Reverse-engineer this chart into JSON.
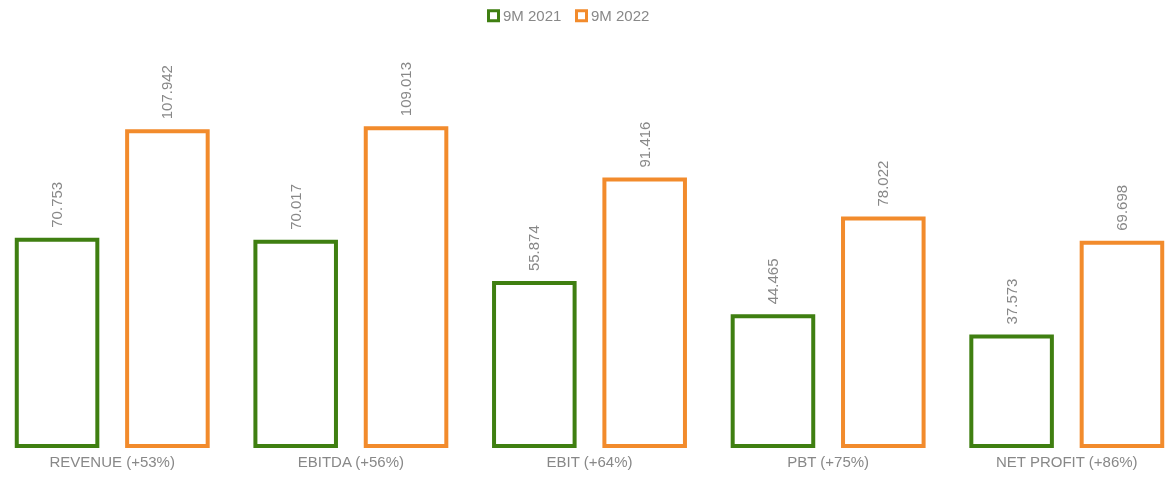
{
  "chart_data": {
    "type": "bar",
    "categories": [
      "REVENUE (+53%)",
      "EBITDA (+56%)",
      "EBIT (+64%)",
      "PBT (+75%)",
      "NET PROFIT (+86%)"
    ],
    "series": [
      {
        "name": "9M 2021",
        "color": "#3f7f11",
        "values": [
          70.753,
          70.017,
          55.874,
          44.465,
          37.573
        ]
      },
      {
        "name": "9M 2022",
        "color": "#f28b2c",
        "values": [
          107.942,
          109.013,
          91.416,
          78.022,
          69.698
        ]
      }
    ],
    "tick_labels": "x",
    "data_labels": true,
    "legend": "top"
  }
}
